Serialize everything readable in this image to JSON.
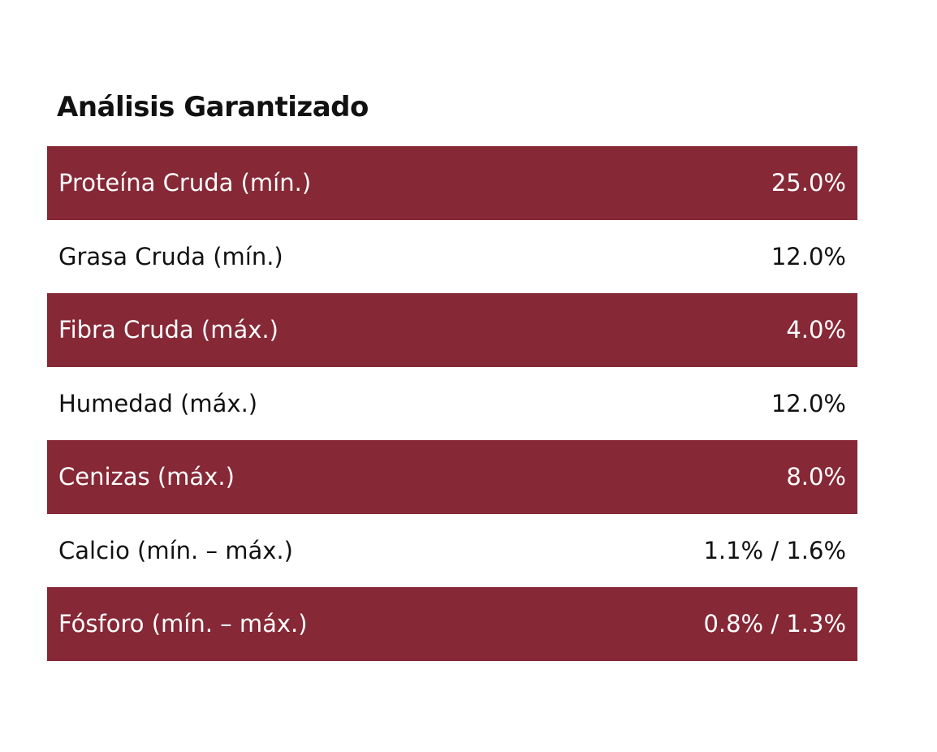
{
  "title": "Análisis Garantizado",
  "table": {
    "rows": [
      [
        "Proteína Cruda (mín.)",
        "25.0%"
      ],
      [
        "Grasa Cruda (mín.)",
        "12.0%"
      ],
      [
        "Fibra Cruda (máx.)",
        "4.0%"
      ],
      [
        "Humedad (máx.)",
        "12.0%"
      ],
      [
        "Cenizas (máx.)",
        "8.0%"
      ],
      [
        "Calcio (mín. – máx.)",
        "1.1% / 1.6%"
      ],
      [
        "Fósforo (mín. – máx.)",
        "0.8% / 1.3%"
      ]
    ]
  }
}
